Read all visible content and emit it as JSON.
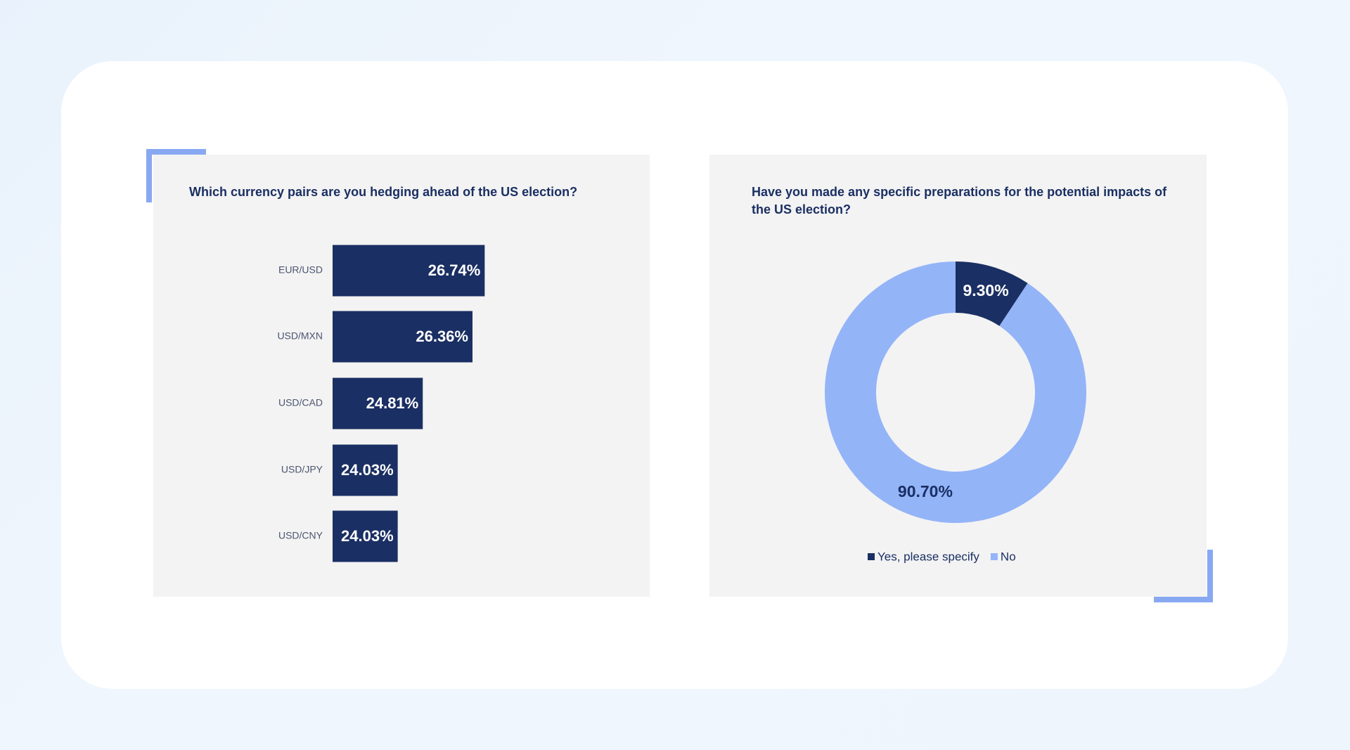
{
  "chart_data": [
    {
      "type": "bar",
      "orientation": "horizontal",
      "title": "Which currency pairs are you hedging ahead of the US election?",
      "categories": [
        "EUR/USD",
        "USD/MXN",
        "USD/CAD",
        "USD/JPY",
        "USD/CNY"
      ],
      "values": [
        26.74,
        26.36,
        24.81,
        24.03,
        24.03
      ],
      "value_labels": [
        "26.74%",
        "26.36%",
        "24.81%",
        "24.03%",
        "24.03%"
      ],
      "color": "#1a2f63",
      "xlim": [
        22,
        30
      ]
    },
    {
      "type": "donut",
      "title": "Have you made any specific preparations for the potential impacts of the US election?",
      "categories": [
        "Yes, please specify",
        "No"
      ],
      "values": [
        9.3,
        90.7
      ],
      "value_labels": [
        "9.30%",
        "90.70%"
      ],
      "colors": [
        "#1a2f63",
        "#94b4f8"
      ],
      "legend": "bottom"
    }
  ]
}
